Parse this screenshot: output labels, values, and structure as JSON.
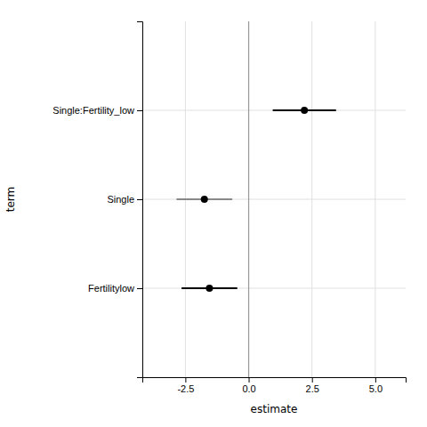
{
  "chart_data": {
    "type": "dot",
    "marker": "circle",
    "categories": [
      "Fertilitylow",
      "Single",
      "Single:Fertility_low"
    ],
    "values": [
      -1.55,
      -1.75,
      2.2
    ],
    "ci_low": [
      -2.65,
      -2.85,
      0.95
    ],
    "ci_high": [
      -0.45,
      -0.65,
      3.45
    ],
    "color": "#000000",
    "colors": [
      "#000000",
      "#888888",
      "#000000"
    ],
    "reference_line": 0,
    "xlim": [
      -4.2,
      6.2
    ],
    "xticks": [
      -2.5,
      {
        "value": 0,
        "label": "0.0"
      },
      2.5,
      {
        "value": 5,
        "label": "5.0"
      }
    ],
    "xlabel": "estimate",
    "ylabel": "term",
    "grid": true
  }
}
